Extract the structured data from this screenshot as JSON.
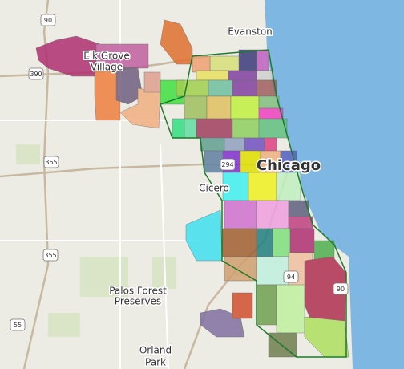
{
  "places": [
    "Evanston",
    "Elk Grove",
    "Village",
    "Chicago",
    "Cicero",
    "Palos Forest",
    "Preserves",
    "Orland",
    "Park"
  ],
  "highways": [
    "90",
    "390",
    "355",
    "355",
    "55",
    "294",
    "94",
    "90"
  ]
}
